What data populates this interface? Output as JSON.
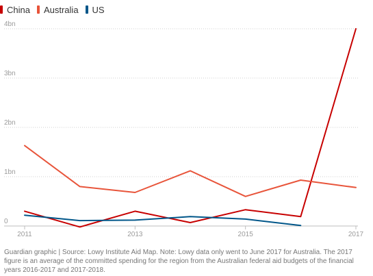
{
  "chart_data": {
    "type": "line",
    "legend_placement": "top-left",
    "grid": true,
    "categories": [
      2011,
      2012,
      2013,
      2014,
      2015,
      2016,
      2017
    ],
    "x_tick_labels": [
      "2011",
      "2013",
      "2015",
      "2017"
    ],
    "y_tick_labels": [
      {
        "value": 0,
        "label": "0"
      },
      {
        "value": 1,
        "label": "1bn"
      },
      {
        "value": 2,
        "label": "2bn"
      },
      {
        "value": 3,
        "label": "3bn"
      },
      {
        "value": 4,
        "label": "4bn"
      }
    ],
    "ylim": [
      0,
      4
    ],
    "xlim": [
      2011,
      2017
    ],
    "series": [
      {
        "name": "China",
        "color": "#c70000",
        "values": [
          0.3,
          -0.02,
          0.3,
          0.07,
          0.33,
          0.19,
          4.0
        ]
      },
      {
        "name": "Australia",
        "color": "#e8543a",
        "values": [
          1.63,
          0.8,
          0.68,
          1.12,
          0.6,
          0.93,
          0.78
        ]
      },
      {
        "name": "US",
        "color": "#005689",
        "values": [
          0.22,
          0.11,
          0.12,
          0.19,
          0.14,
          0.01,
          null
        ]
      }
    ]
  },
  "footer": {
    "source": "Guardian graphic | Source: Lowy Institute Aid Map. Note: Lowy data only went to June 2017 for Australia. The 2017 figure is an average of the committed spending for the region from the Australian federal aid budgets of the financial years 2016-2017 and 2017-2018."
  }
}
